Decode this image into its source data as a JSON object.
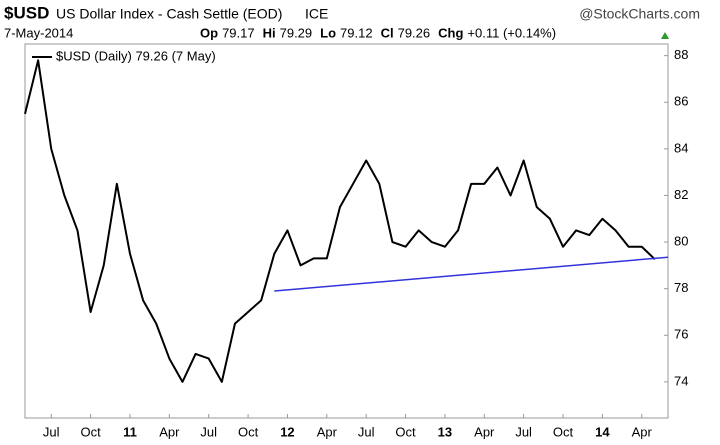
{
  "chart_data": {
    "type": "line",
    "header": {
      "symbol": "$USD",
      "name": "US Dollar Index - Cash Settle (EOD)",
      "exchange": "ICE",
      "source": "@StockCharts.com",
      "date": "7-May-2014",
      "quotes": [
        {
          "label": "Op",
          "value": "79.17"
        },
        {
          "label": "Hi",
          "value": "79.29"
        },
        {
          "label": "Lo",
          "value": "79.12"
        },
        {
          "label": "Cl",
          "value": "79.26"
        },
        {
          "label": "Chg",
          "value": "+0.11 (+0.14%)"
        }
      ]
    },
    "x": [
      "2010-05",
      "2010-06",
      "2010-07",
      "2010-08",
      "2010-09",
      "2010-10",
      "2010-11",
      "2010-12",
      "2011-01",
      "2011-02",
      "2011-03",
      "2011-04",
      "2011-05",
      "2011-06",
      "2011-07",
      "2011-08",
      "2011-09",
      "2011-10",
      "2011-11",
      "2011-12",
      "2012-01",
      "2012-02",
      "2012-03",
      "2012-04",
      "2012-05",
      "2012-06",
      "2012-07",
      "2012-08",
      "2012-09",
      "2012-10",
      "2012-11",
      "2012-12",
      "2013-01",
      "2013-02",
      "2013-03",
      "2013-04",
      "2013-05",
      "2013-06",
      "2013-07",
      "2013-08",
      "2013-09",
      "2013-10",
      "2013-11",
      "2013-12",
      "2014-01",
      "2014-02",
      "2014-03",
      "2014-04",
      "2014-05"
    ],
    "series": [
      {
        "name": "$USD (Daily) 79.26 (7 May)",
        "color": "#000000",
        "values": [
          85.5,
          87.8,
          84,
          82,
          80.5,
          77,
          79,
          82.5,
          79.5,
          77.5,
          76.5,
          75,
          74,
          75.2,
          75,
          74,
          76.5,
          77,
          77.5,
          79.5,
          80.5,
          79,
          79.3,
          79.3,
          81.5,
          82.5,
          83.5,
          82.5,
          80,
          79.8,
          80.5,
          80,
          79.8,
          80.5,
          82.5,
          82.5,
          83.2,
          82,
          83.5,
          81.5,
          81,
          79.8,
          80.5,
          80.3,
          81,
          80.5,
          79.8,
          79.8,
          79.26
        ]
      }
    ],
    "trendline": {
      "x": [
        "2011-12",
        "2014-06"
      ],
      "values": [
        77.9,
        79.35
      ],
      "color": "#3333dd"
    },
    "xlim": [
      "2010-05",
      "2014-06"
    ],
    "xticks": [
      {
        "value": "2010-07",
        "label": "Jul"
      },
      {
        "value": "2010-10",
        "label": "Oct"
      },
      {
        "value": "2011-01",
        "label": "11"
      },
      {
        "value": "2011-04",
        "label": "Apr"
      },
      {
        "value": "2011-07",
        "label": "Jul"
      },
      {
        "value": "2011-10",
        "label": "Oct"
      },
      {
        "value": "2012-01",
        "label": "12"
      },
      {
        "value": "2012-04",
        "label": "Apr"
      },
      {
        "value": "2012-07",
        "label": "Jul"
      },
      {
        "value": "2012-10",
        "label": "Oct"
      },
      {
        "value": "2013-01",
        "label": "13"
      },
      {
        "value": "2013-04",
        "label": "Apr"
      },
      {
        "value": "2013-07",
        "label": "Jul"
      },
      {
        "value": "2013-10",
        "label": "Oct"
      },
      {
        "value": "2014-01",
        "label": "14"
      },
      {
        "value": "2014-04",
        "label": "Apr"
      }
    ],
    "ylim": [
      72.45,
      88.5
    ],
    "yticks": [
      74,
      76,
      78,
      80,
      82,
      84,
      86,
      88
    ]
  }
}
